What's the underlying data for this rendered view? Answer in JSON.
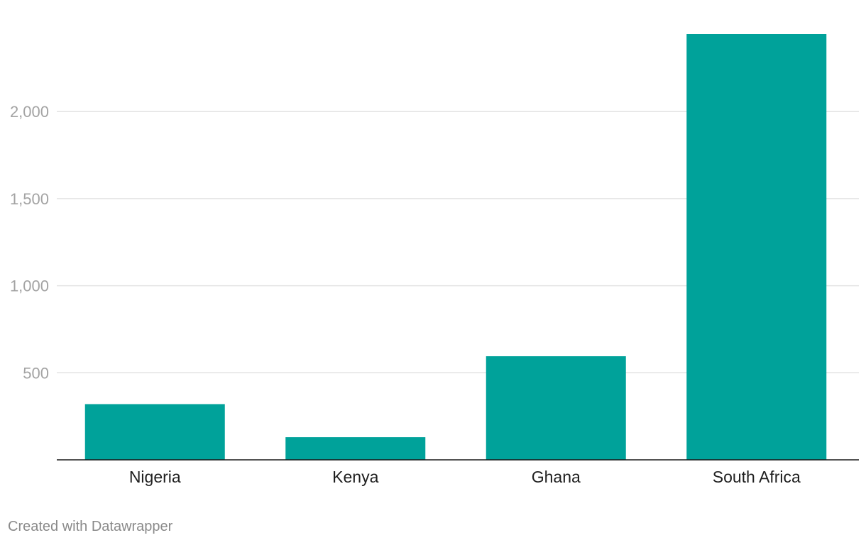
{
  "chart_data": {
    "type": "bar",
    "categories": [
      "Nigeria",
      "Kenya",
      "Ghana",
      "South Africa"
    ],
    "values": [
      320,
      130,
      595,
      2445
    ],
    "ylim": [
      0,
      2445
    ],
    "yticks": [
      {
        "value": 500,
        "label": "500"
      },
      {
        "value": 1000,
        "label": "1,000"
      },
      {
        "value": 1500,
        "label": "1,500"
      },
      {
        "value": 2000,
        "label": "2,000"
      }
    ],
    "grid": true,
    "bar_color": "#00a29a",
    "title": "",
    "xlabel": "",
    "ylabel": ""
  },
  "footer": {
    "credit": "Created with Datawrapper"
  }
}
